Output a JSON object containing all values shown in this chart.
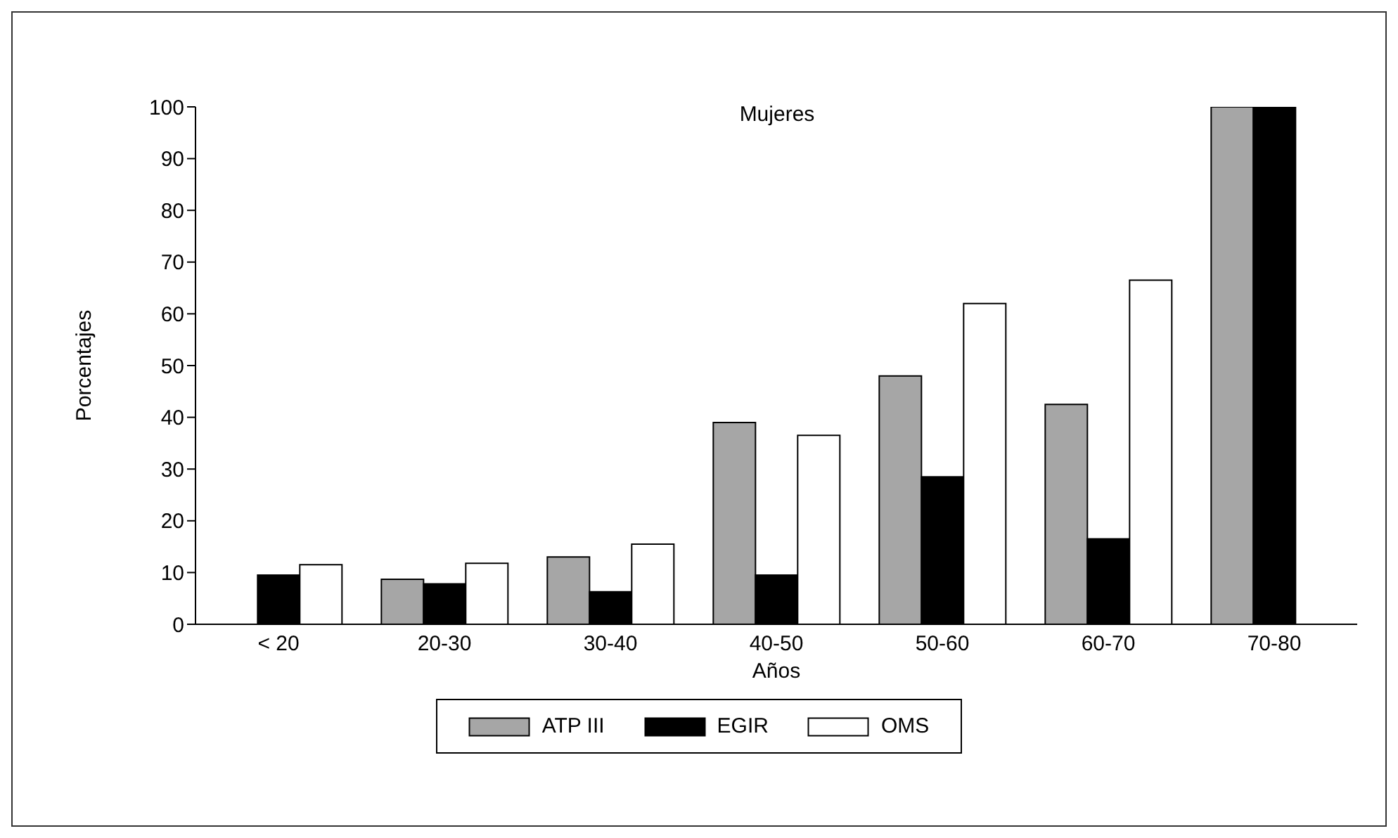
{
  "chart_data": {
    "type": "bar",
    "title": "Mujeres",
    "xlabel": "Años",
    "ylabel": "Porcentajes",
    "categories": [
      "< 20",
      "20-30",
      "30-40",
      "40-50",
      "50-60",
      "60-70",
      "70-80"
    ],
    "series": [
      {
        "name": "ATP III",
        "color": "#a6a6a6",
        "values": [
          null,
          8.7,
          13,
          39,
          48,
          42.5,
          100
        ]
      },
      {
        "name": "EGIR",
        "color": "#000000",
        "values": [
          9.5,
          7.8,
          6.3,
          9.5,
          28.5,
          16.5,
          100
        ]
      },
      {
        "name": "OMS",
        "color": "#ffffff",
        "values": [
          11.5,
          11.8,
          15.5,
          36.5,
          62,
          66.5,
          null
        ]
      }
    ],
    "ylim": [
      0,
      100
    ],
    "yticks": [
      0,
      10,
      20,
      30,
      40,
      50,
      60,
      70,
      80,
      90,
      100
    ],
    "grid": false,
    "legend": "bottom"
  }
}
